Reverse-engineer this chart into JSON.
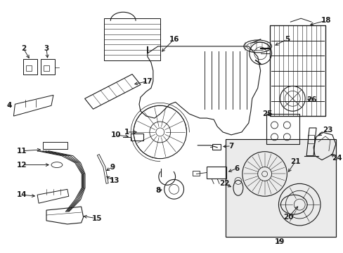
{
  "bg_color": "#ffffff",
  "line_color": "#1a1a1a",
  "fig_width": 4.89,
  "fig_height": 3.6,
  "dpi": 100,
  "label_fs": 7.5,
  "lw": 0.8
}
